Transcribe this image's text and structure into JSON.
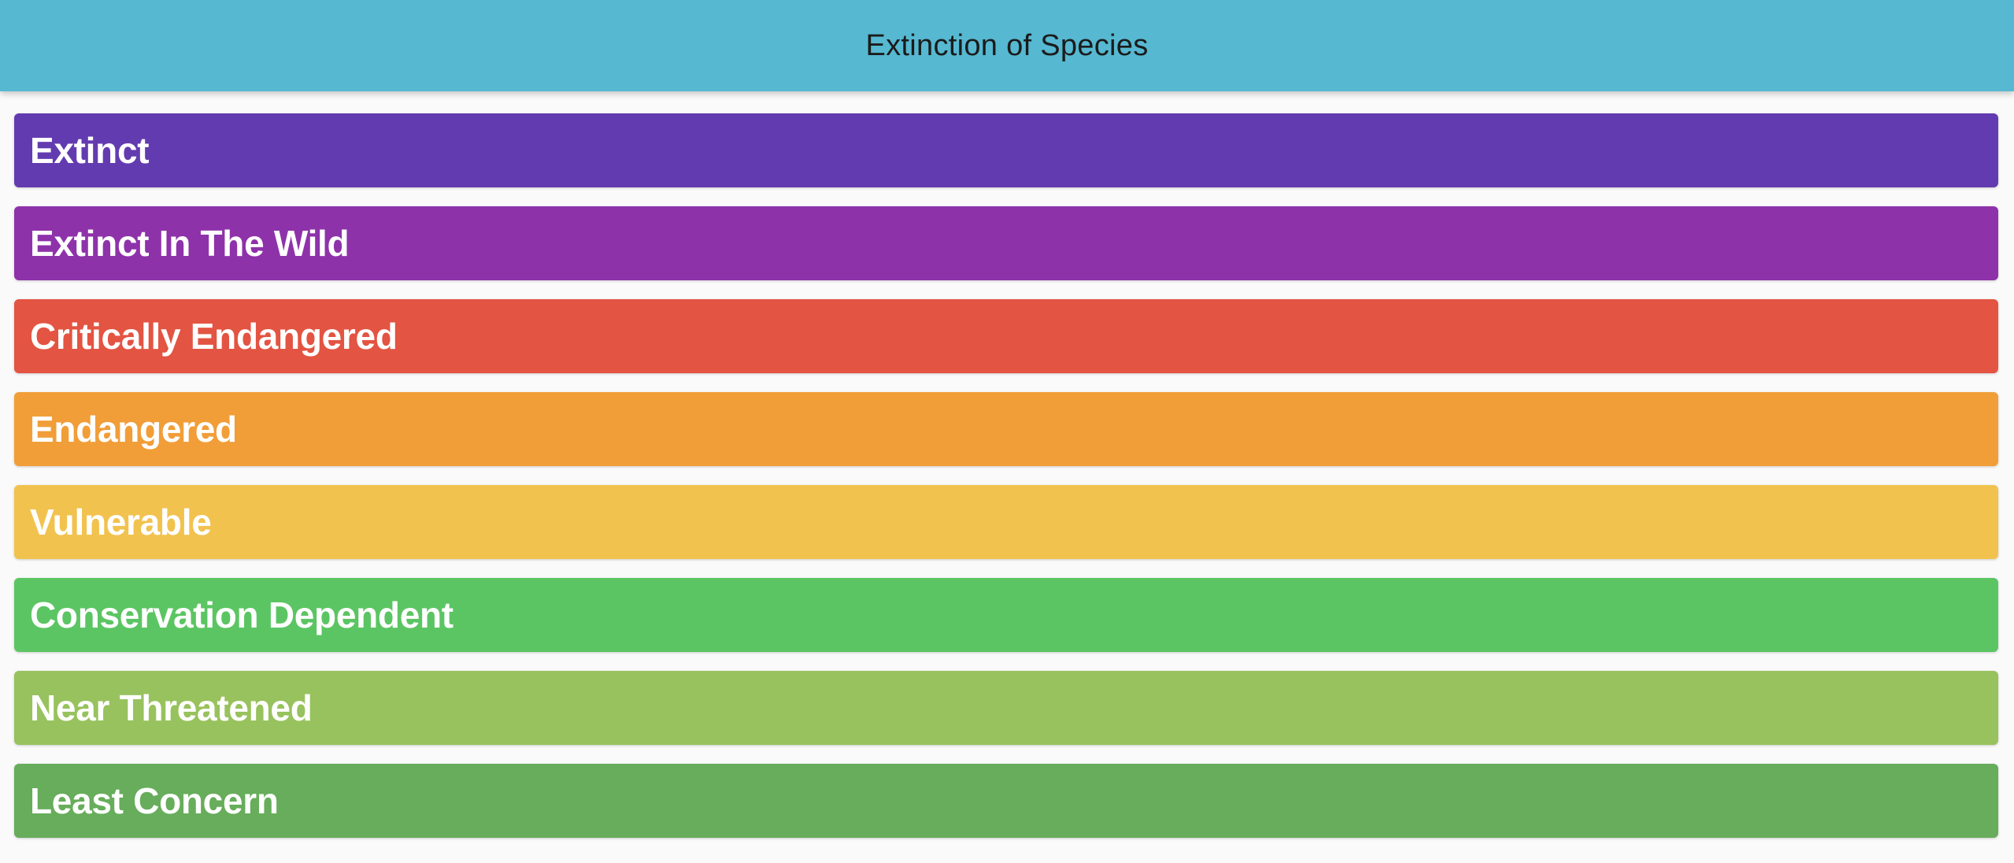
{
  "app_bar": {
    "title": "Extinction of Species",
    "color": "#56b8d1"
  },
  "statuses": [
    {
      "label": "Extinct",
      "color": "#633bb0"
    },
    {
      "label": "Extinct In The Wild",
      "color": "#8e32aa"
    },
    {
      "label": "Critically Endangered",
      "color": "#e35442"
    },
    {
      "label": "Endangered",
      "color": "#f19e38"
    },
    {
      "label": "Vulnerable",
      "color": "#f2c24f"
    },
    {
      "label": "Conservation Dependent",
      "color": "#5cc563"
    },
    {
      "label": "Near Threatened",
      "color": "#98c25d"
    },
    {
      "label": "Least Concern",
      "color": "#67ad5b"
    }
  ]
}
